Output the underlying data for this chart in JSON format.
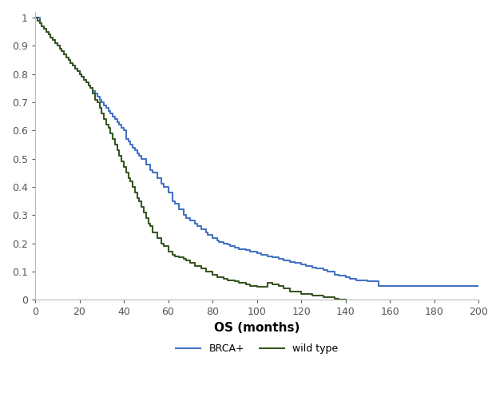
{
  "brca_x": [
    0,
    2,
    3,
    4,
    5,
    6,
    7,
    8,
    9,
    10,
    11,
    12,
    13,
    14,
    15,
    16,
    17,
    18,
    19,
    20,
    21,
    22,
    23,
    24,
    25,
    26,
    27,
    28,
    29,
    30,
    31,
    32,
    33,
    34,
    35,
    36,
    37,
    38,
    39,
    40,
    41,
    42,
    43,
    44,
    45,
    46,
    47,
    48,
    50,
    52,
    53,
    55,
    57,
    58,
    60,
    62,
    63,
    65,
    67,
    68,
    70,
    72,
    73,
    75,
    77,
    78,
    80,
    82,
    83,
    85,
    87,
    88,
    90,
    92,
    95,
    97,
    100,
    102,
    105,
    107,
    110,
    112,
    115,
    117,
    120,
    122,
    125,
    127,
    130,
    132,
    135,
    137,
    140,
    142,
    145,
    150,
    155,
    200
  ],
  "brca_y": [
    1.0,
    0.98,
    0.97,
    0.96,
    0.95,
    0.94,
    0.93,
    0.92,
    0.91,
    0.9,
    0.89,
    0.88,
    0.87,
    0.86,
    0.85,
    0.84,
    0.83,
    0.82,
    0.81,
    0.8,
    0.79,
    0.78,
    0.77,
    0.76,
    0.75,
    0.74,
    0.73,
    0.72,
    0.71,
    0.7,
    0.69,
    0.68,
    0.67,
    0.66,
    0.65,
    0.64,
    0.63,
    0.62,
    0.61,
    0.6,
    0.57,
    0.56,
    0.55,
    0.54,
    0.53,
    0.52,
    0.51,
    0.5,
    0.48,
    0.46,
    0.45,
    0.43,
    0.41,
    0.4,
    0.38,
    0.35,
    0.34,
    0.32,
    0.3,
    0.29,
    0.28,
    0.27,
    0.26,
    0.25,
    0.24,
    0.23,
    0.22,
    0.21,
    0.205,
    0.2,
    0.195,
    0.19,
    0.185,
    0.18,
    0.175,
    0.17,
    0.165,
    0.16,
    0.155,
    0.15,
    0.145,
    0.14,
    0.135,
    0.13,
    0.125,
    0.12,
    0.115,
    0.11,
    0.105,
    0.1,
    0.09,
    0.085,
    0.08,
    0.075,
    0.07,
    0.065,
    0.05,
    0.05
  ],
  "wt_x": [
    0,
    1,
    2,
    3,
    4,
    5,
    6,
    7,
    8,
    9,
    10,
    11,
    12,
    13,
    14,
    15,
    16,
    17,
    18,
    19,
    20,
    21,
    22,
    23,
    24,
    25,
    26,
    27,
    28,
    29,
    30,
    31,
    32,
    33,
    34,
    35,
    36,
    37,
    38,
    39,
    40,
    41,
    42,
    43,
    44,
    45,
    46,
    47,
    48,
    49,
    50,
    51,
    52,
    53,
    55,
    57,
    58,
    60,
    62,
    63,
    65,
    67,
    68,
    70,
    72,
    75,
    77,
    80,
    82,
    85,
    87,
    90,
    92,
    95,
    97,
    100,
    105,
    107,
    110,
    112,
    115,
    120,
    125,
    130,
    132,
    135,
    137,
    140
  ],
  "wt_y": [
    1.0,
    0.99,
    0.98,
    0.97,
    0.96,
    0.95,
    0.94,
    0.93,
    0.92,
    0.91,
    0.9,
    0.89,
    0.88,
    0.87,
    0.86,
    0.85,
    0.84,
    0.83,
    0.82,
    0.81,
    0.8,
    0.79,
    0.78,
    0.77,
    0.76,
    0.75,
    0.73,
    0.71,
    0.7,
    0.68,
    0.66,
    0.64,
    0.62,
    0.61,
    0.59,
    0.57,
    0.55,
    0.53,
    0.51,
    0.49,
    0.47,
    0.45,
    0.43,
    0.42,
    0.4,
    0.38,
    0.36,
    0.35,
    0.33,
    0.31,
    0.29,
    0.27,
    0.26,
    0.24,
    0.22,
    0.2,
    0.19,
    0.17,
    0.16,
    0.155,
    0.15,
    0.145,
    0.14,
    0.13,
    0.12,
    0.11,
    0.1,
    0.09,
    0.08,
    0.075,
    0.07,
    0.065,
    0.06,
    0.055,
    0.05,
    0.045,
    0.06,
    0.055,
    0.05,
    0.04,
    0.03,
    0.02,
    0.015,
    0.01,
    0.008,
    0.005,
    0.002,
    0.0
  ],
  "brca_color": "#4472C4",
  "wt_color": "#375623",
  "xlabel": "OS (months)",
  "xlim": [
    0,
    200
  ],
  "ylim": [
    0,
    1.02
  ],
  "xticks": [
    0,
    20,
    40,
    60,
    80,
    100,
    120,
    140,
    160,
    180,
    200
  ],
  "yticks": [
    0,
    0.1,
    0.2,
    0.3,
    0.4,
    0.5,
    0.6,
    0.7,
    0.8,
    0.9,
    1
  ],
  "ytick_labels": [
    "0",
    "0.1",
    "0.2",
    "0.3",
    "0.4",
    "0.5",
    "0.6",
    "0.7",
    "0.8",
    "0.9",
    "1"
  ],
  "legend_labels": [
    "BRCA+",
    "wild type"
  ],
  "linewidth": 1.5
}
